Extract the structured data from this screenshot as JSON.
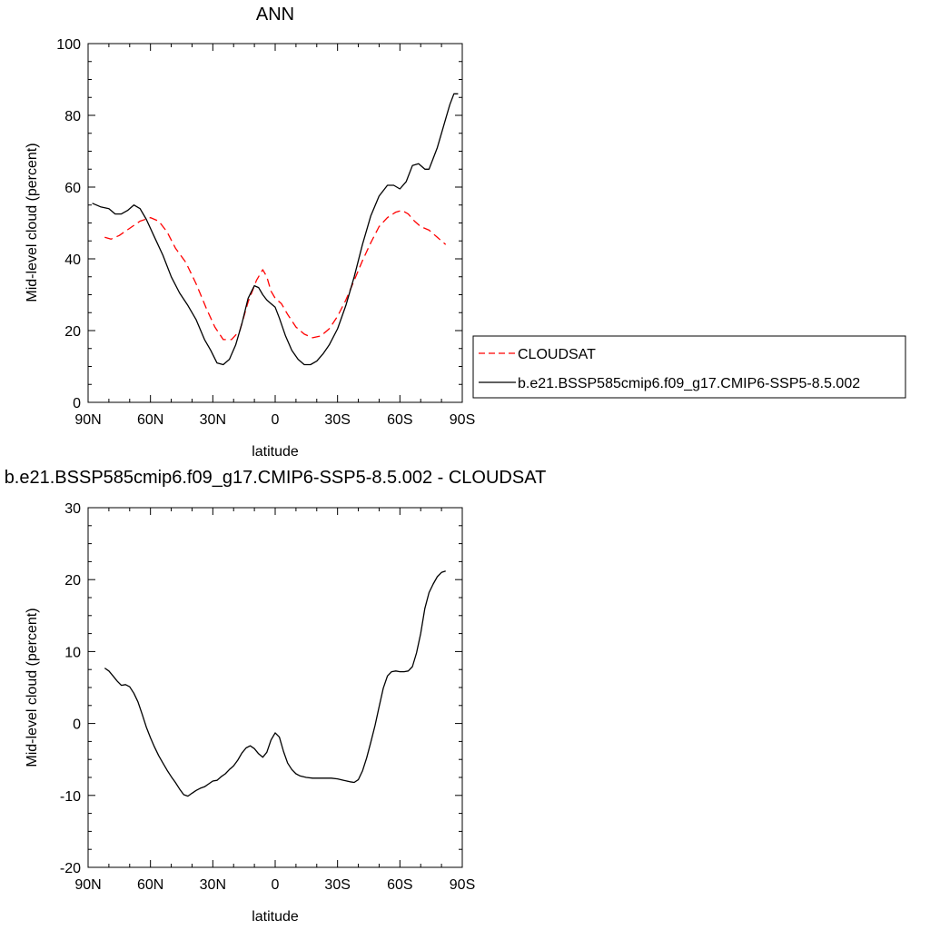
{
  "legend": {
    "entries": [
      {
        "label": "CLOUDSAT",
        "color": "#ff0000",
        "dash": true
      },
      {
        "label": "b.e21.BSSP585cmip6.f09_g17.CMIP6-SSP5-8.5.002",
        "color": "#000000",
        "dash": false
      }
    ]
  },
  "chart_data": [
    {
      "type": "line",
      "title": "ANN",
      "xlabel": "latitude",
      "ylabel": "Mid-level cloud (percent)",
      "xlim": [
        90,
        -90
      ],
      "ylim": [
        0,
        100
      ],
      "xticks": [
        {
          "value": 90,
          "label": "90N"
        },
        {
          "value": 60,
          "label": "60N"
        },
        {
          "value": 30,
          "label": "30N"
        },
        {
          "value": 0,
          "label": "0"
        },
        {
          "value": -30,
          "label": "30S"
        },
        {
          "value": -60,
          "label": "60S"
        },
        {
          "value": -90,
          "label": "90S"
        }
      ],
      "yticks": [
        {
          "value": 0,
          "label": "0"
        },
        {
          "value": 20,
          "label": "20"
        },
        {
          "value": 40,
          "label": "40"
        },
        {
          "value": 60,
          "label": "60"
        },
        {
          "value": 80,
          "label": "80"
        },
        {
          "value": 100,
          "label": "100"
        }
      ],
      "series": [
        {
          "name": "CLOUDSAT",
          "color": "#ff0000",
          "dash": true,
          "x": [
            82,
            79,
            75,
            70,
            65,
            60,
            56,
            52,
            48,
            43,
            38,
            33,
            29,
            25,
            21,
            17,
            13,
            9,
            6,
            4,
            2,
            0,
            -3,
            -6,
            -10,
            -14,
            -18,
            -22,
            -26,
            -30,
            -34,
            -38,
            -42,
            -46,
            -50,
            -54,
            -58,
            -61,
            -64,
            -67,
            -70,
            -74,
            -78,
            -82
          ],
          "y": [
            46,
            45.5,
            46.5,
            48.5,
            50.5,
            51.5,
            50.5,
            47.5,
            43,
            39,
            33,
            26,
            21,
            17.5,
            17.5,
            20,
            28,
            34,
            37,
            35,
            31,
            29,
            27.5,
            24.5,
            21,
            19,
            18,
            18.5,
            20.5,
            24,
            28.5,
            34,
            39.5,
            44.5,
            49,
            51.5,
            53,
            53.5,
            52.5,
            50.5,
            49,
            48,
            46,
            44
          ]
        },
        {
          "name": "b.e21.BSSP585cmip6.f09_g17.CMIP6-SSP5-8.5.002",
          "color": "#000000",
          "dash": false,
          "x": [
            88,
            84,
            80,
            77,
            74,
            71,
            68,
            65,
            62,
            58,
            54,
            50,
            46,
            42,
            38,
            34,
            31,
            28,
            25,
            22,
            19,
            16,
            13,
            10,
            8,
            6,
            4,
            2,
            0,
            -2,
            -5,
            -8,
            -11,
            -14,
            -17,
            -20,
            -23,
            -26,
            -30,
            -34,
            -38,
            -42,
            -46,
            -50,
            -54,
            -57,
            -60,
            -63,
            -66,
            -69,
            -72,
            -74,
            -76,
            -78,
            -80,
            -82,
            -84,
            -86,
            -88
          ],
          "y": [
            55.5,
            54.5,
            54,
            52.5,
            52.5,
            53.5,
            55,
            54,
            51,
            46,
            41,
            35,
            30.5,
            27,
            23,
            17.5,
            14.5,
            11,
            10.5,
            12,
            16,
            22,
            29,
            32.5,
            32,
            30,
            28.5,
            27.5,
            26.5,
            23.5,
            18.5,
            14.5,
            12,
            10.5,
            10.5,
            11.5,
            13.5,
            16,
            20.5,
            27,
            35,
            44,
            52,
            57.5,
            60.5,
            60.5,
            59.5,
            61.5,
            66,
            66.5,
            65,
            65,
            68,
            71,
            75,
            79,
            83,
            86,
            86
          ]
        }
      ]
    },
    {
      "type": "line",
      "title": "b.e21.BSSP585cmip6.f09_g17.CMIP6-SSP5-8.5.002 - CLOUDSAT",
      "xlabel": "latitude",
      "ylabel": "Mid-level cloud (percent)",
      "xlim": [
        90,
        -90
      ],
      "ylim": [
        -20,
        30
      ],
      "xticks": [
        {
          "value": 90,
          "label": "90N"
        },
        {
          "value": 60,
          "label": "60N"
        },
        {
          "value": 30,
          "label": "30N"
        },
        {
          "value": 0,
          "label": "0"
        },
        {
          "value": -30,
          "label": "30S"
        },
        {
          "value": -60,
          "label": "60S"
        },
        {
          "value": -90,
          "label": "90S"
        }
      ],
      "yticks": [
        {
          "value": -20,
          "label": "-20"
        },
        {
          "value": -10,
          "label": "-10"
        },
        {
          "value": 0,
          "label": "0"
        },
        {
          "value": 10,
          "label": "10"
        },
        {
          "value": 20,
          "label": "20"
        },
        {
          "value": 30,
          "label": "30"
        }
      ],
      "series": [
        {
          "color": "#000000",
          "dash": false,
          "x": [
            82,
            80,
            78,
            76,
            74,
            72,
            70,
            68,
            66,
            64,
            62,
            60,
            58,
            56,
            54,
            52,
            50,
            48,
            46,
            44,
            42,
            40,
            38,
            36,
            34,
            32,
            30,
            28,
            26,
            24,
            22,
            20,
            18,
            16,
            14,
            12,
            10,
            8,
            6,
            4,
            2,
            0,
            -2,
            -4,
            -6,
            -8,
            -10,
            -12,
            -15,
            -18,
            -21,
            -24,
            -27,
            -30,
            -33,
            -36,
            -38,
            -40,
            -42,
            -44,
            -46,
            -48,
            -50,
            -52,
            -54,
            -56,
            -58,
            -60,
            -62,
            -64,
            -66,
            -68,
            -70,
            -72,
            -74,
            -76,
            -78,
            -80,
            -82
          ],
          "y": [
            7.7,
            7.3,
            6.6,
            5.9,
            5.3,
            5.4,
            5.1,
            4.2,
            3,
            1.3,
            -0.5,
            -2,
            -3.3,
            -4.5,
            -5.5,
            -6.5,
            -7.4,
            -8.2,
            -9.1,
            -9.9,
            -10.1,
            -9.7,
            -9.3,
            -9,
            -8.8,
            -8.4,
            -8,
            -7.9,
            -7.4,
            -7,
            -6.4,
            -5.9,
            -5.1,
            -4.1,
            -3.4,
            -3.1,
            -3.5,
            -4.2,
            -4.7,
            -4,
            -2.3,
            -1.3,
            -1.9,
            -3.9,
            -5.5,
            -6.4,
            -7,
            -7.3,
            -7.5,
            -7.6,
            -7.6,
            -7.6,
            -7.6,
            -7.7,
            -7.9,
            -8.1,
            -8.2,
            -7.8,
            -6.6,
            -4.8,
            -2.6,
            -0.3,
            2.3,
            4.9,
            6.6,
            7.2,
            7.3,
            7.2,
            7.2,
            7.3,
            7.9,
            9.8,
            12.5,
            16,
            18.2,
            19.4,
            20.4,
            21,
            21.2
          ]
        }
      ]
    }
  ]
}
